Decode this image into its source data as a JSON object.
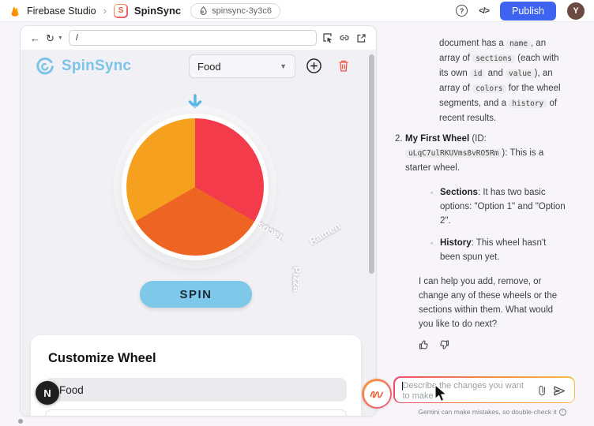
{
  "topbar": {
    "product": "Firebase Studio",
    "app_name": "SpinSync",
    "app_icon_letter": "S",
    "workspace_badge": "spinsync-3y3c6",
    "publish_label": "Publish",
    "avatar_initial": "Y",
    "help_glyph": "?",
    "code_glyph": "</>",
    "publish_color": "#3E63F1"
  },
  "preview": {
    "back_glyph": "←",
    "refresh_glyph": "↻",
    "url_value": "/",
    "app": {
      "logo_text": "SpinSync",
      "wheel_selector_value": "Food",
      "spin_label": "SPIN",
      "customize": {
        "heading": "Customize Wheel",
        "wheel_name_value": "Food"
      },
      "nextjs_badge": "N"
    }
  },
  "wheel": {
    "segments": [
      {
        "label": "Ramen",
        "color": "#F43B4C"
      },
      {
        "label": "Pizza",
        "color": "#EE6423"
      },
      {
        "label": "Tacos",
        "color": "#F6A01F"
      }
    ],
    "pointer_color": "#56B7E6",
    "spin_button_color": "#7EC8EA",
    "logo_color": "#7CC3E8"
  },
  "chat": {
    "blocks": [
      {
        "type": "p",
        "layout": "b0",
        "segments": [
          {
            "t": "text",
            "v": "document has a "
          },
          {
            "t": "code",
            "v": "name"
          },
          {
            "t": "text",
            "v": ", an array of "
          },
          {
            "t": "code",
            "v": "sections"
          },
          {
            "t": "text",
            "v": " (each with its own "
          },
          {
            "t": "code",
            "v": "id"
          },
          {
            "t": "text",
            "v": " and "
          },
          {
            "t": "code",
            "v": "value"
          },
          {
            "t": "text",
            "v": "), an array of "
          },
          {
            "t": "code",
            "v": "colors"
          },
          {
            "t": "text",
            "v": " for the wheel segments, and a "
          },
          {
            "t": "code",
            "v": "history"
          },
          {
            "t": "text",
            "v": " of recent results."
          }
        ]
      },
      {
        "type": "li-num",
        "layout": "b1",
        "num": "2.",
        "segments": [
          {
            "t": "bold",
            "v": "My First Wheel"
          },
          {
            "t": "text",
            "v": " (ID: "
          },
          {
            "t": "code",
            "v": "uLqC7ulRKUVms8vRO5Rm"
          },
          {
            "t": "text",
            "v": "): This is a starter wheel."
          }
        ]
      },
      {
        "type": "li-bullet",
        "layout": "b2",
        "marker": "◦",
        "segments": [
          {
            "t": "bold",
            "v": "Sections"
          },
          {
            "t": "text",
            "v": ": It has two basic options: \"Option 1\" and \"Option 2\"."
          }
        ]
      },
      {
        "type": "li-bullet",
        "layout": "b3",
        "marker": "◦",
        "segments": [
          {
            "t": "bold",
            "v": "History"
          },
          {
            "t": "text",
            "v": ": This wheel hasn't been spun yet."
          }
        ]
      },
      {
        "type": "p",
        "layout": "b4",
        "segments": [
          {
            "t": "text",
            "v": "I can help you add, remove, or change any of these wheels or the sections within them. What would you like to do next?"
          }
        ]
      }
    ],
    "composer": {
      "placeholder": "Describe the changes you want to make"
    },
    "footer_note": "Gemini can make mistakes, so double-check it",
    "info_glyph": "i"
  }
}
